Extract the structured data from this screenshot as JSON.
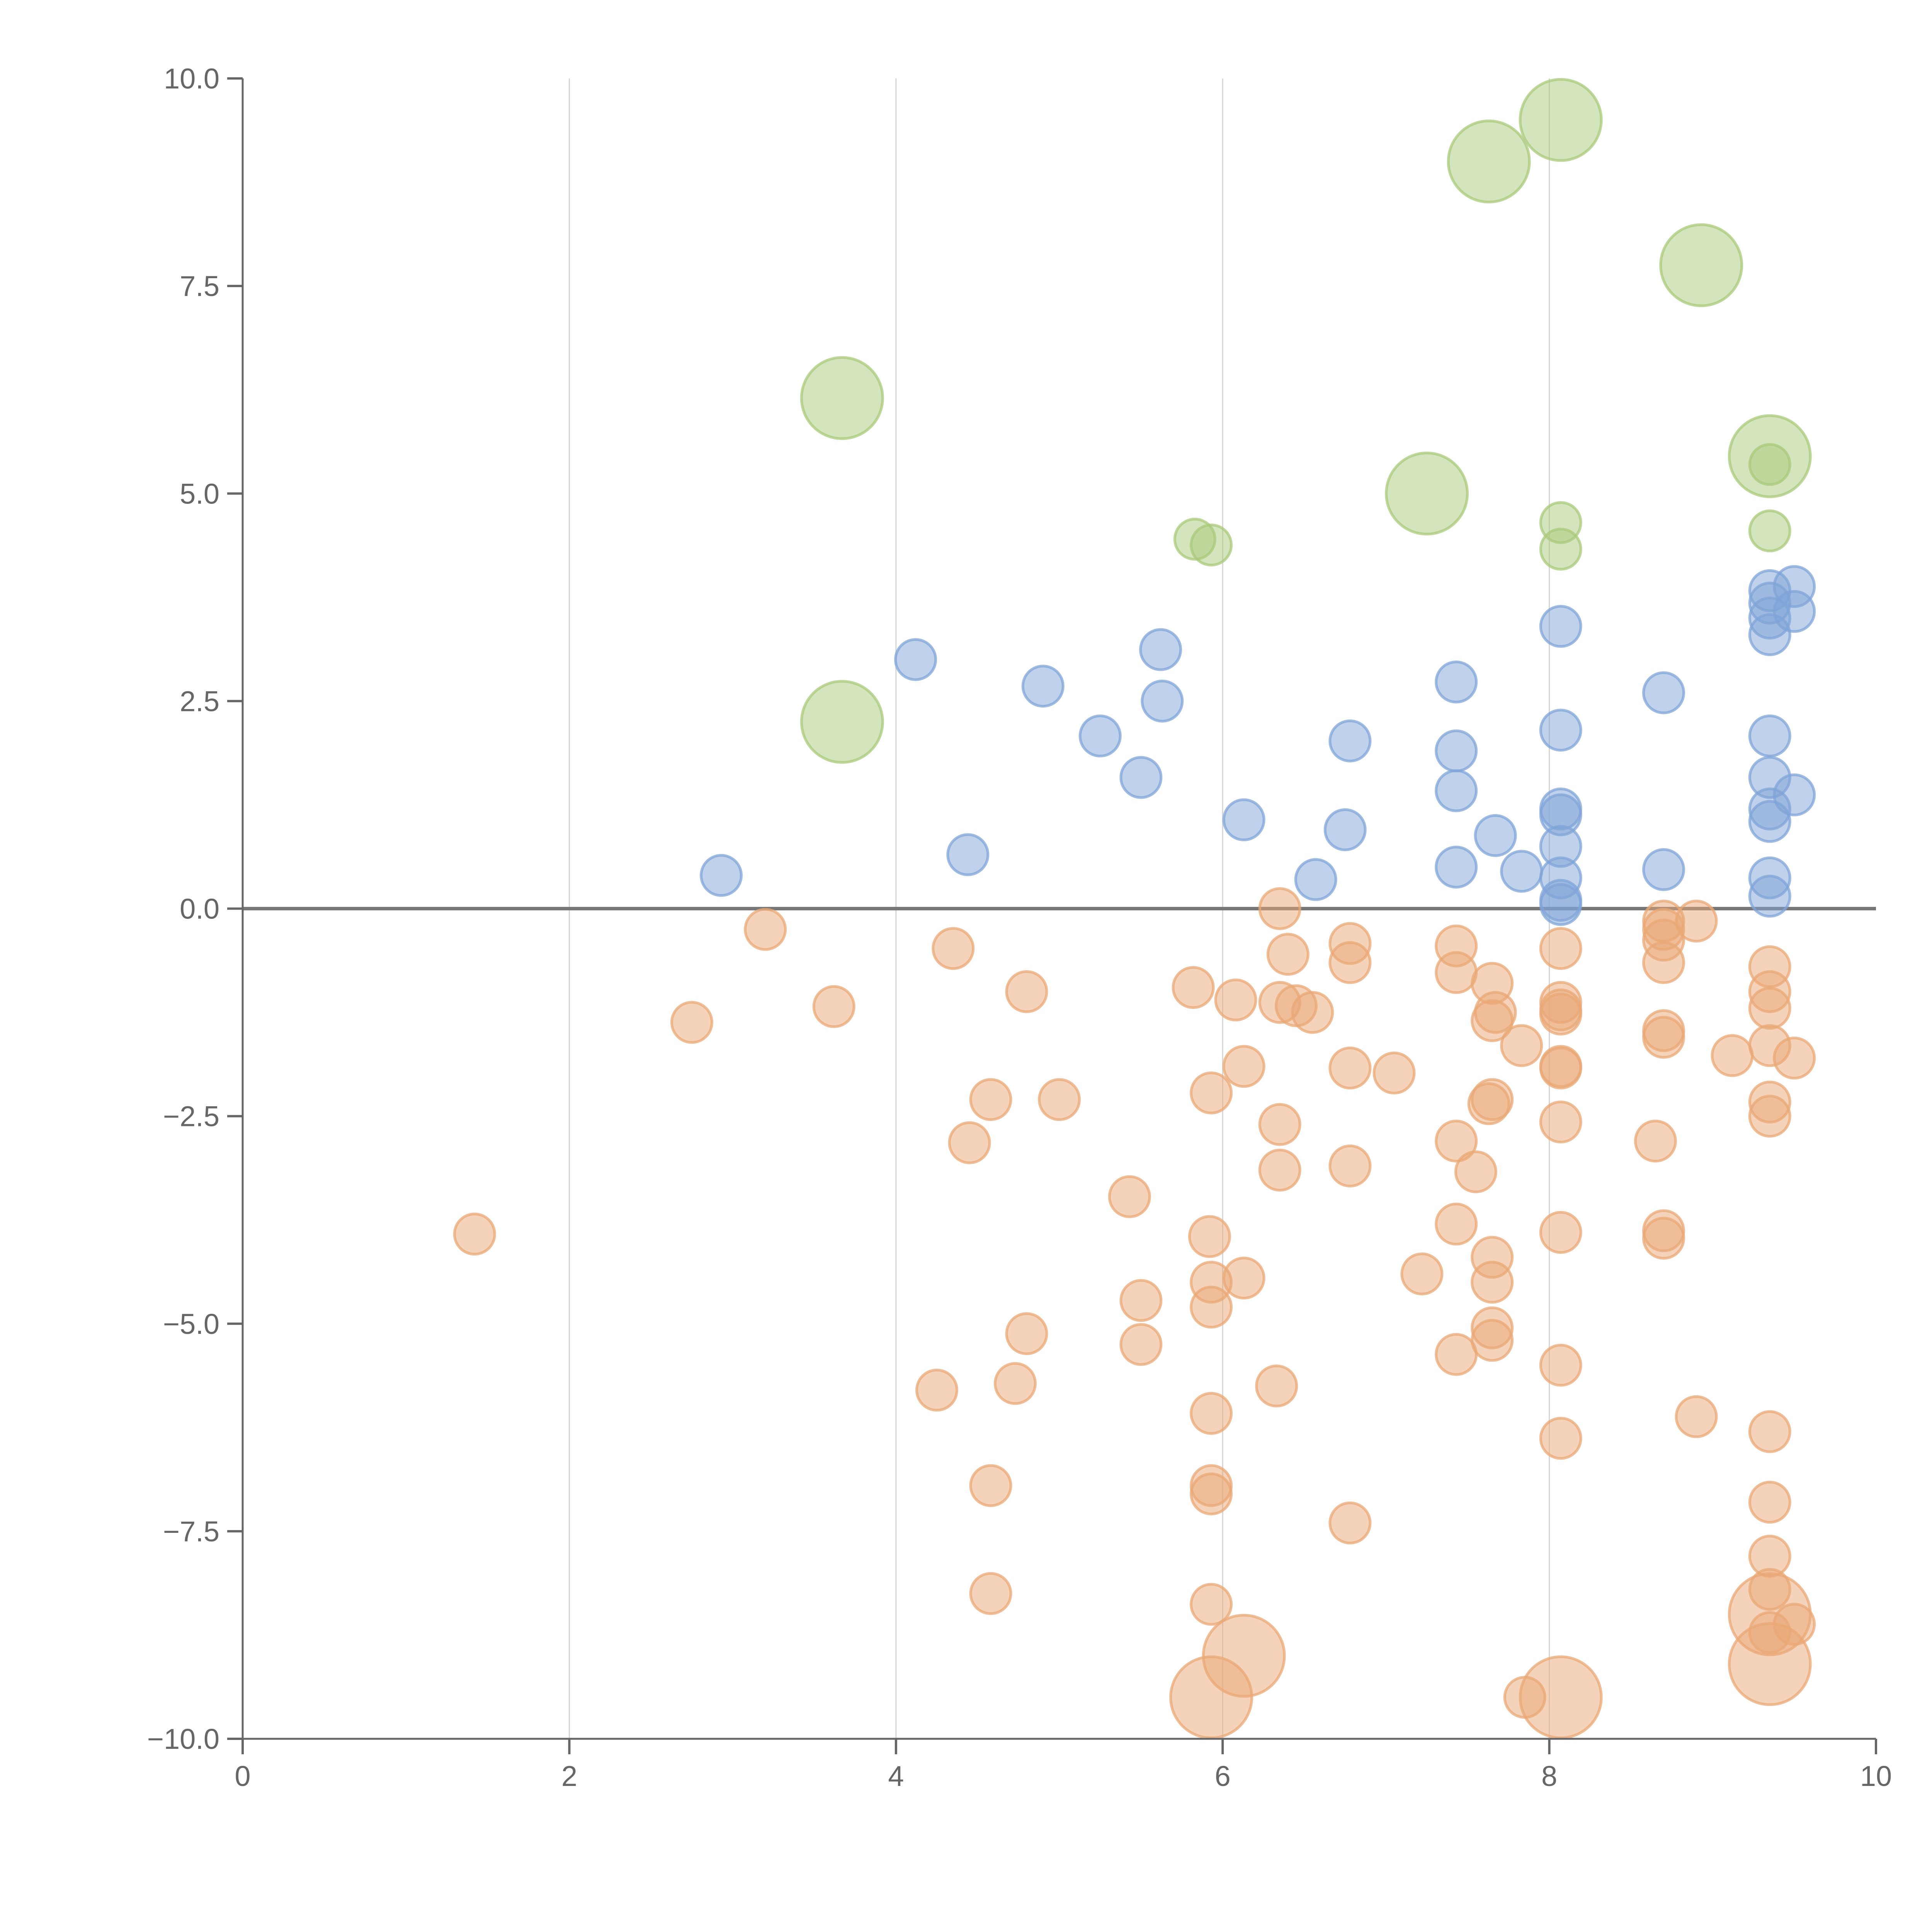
{
  "chart_data": {
    "type": "scatter",
    "title": "",
    "xlabel": "",
    "ylabel": "",
    "xlim": [
      0,
      10
    ],
    "ylim": [
      -10,
      10
    ],
    "x_ticks": [
      0,
      2,
      4,
      6,
      8,
      10
    ],
    "y_ticks": [
      10,
      7.5,
      5,
      2.5,
      0,
      -2.5,
      -5,
      -7.5,
      -10
    ],
    "x_tick_labels": [
      "0",
      "2",
      "4",
      "6",
      "8",
      "10"
    ],
    "y_tick_labels": [
      "10.0",
      "7.5",
      "5.0",
      "2.5",
      "0.0",
      "−2.5",
      "−5.0",
      "−7.5",
      "−10.0"
    ],
    "grid": "vertical",
    "legend": "none",
    "series": [
      {
        "name": "green",
        "color": "#a9c97a",
        "points": [
          [
            8.07,
            9.5,
            3
          ],
          [
            7.63,
            9.0,
            3
          ],
          [
            8.93,
            7.75,
            3
          ],
          [
            3.67,
            6.15,
            3
          ],
          [
            9.35,
            5.45,
            3
          ],
          [
            7.25,
            5.0,
            3
          ],
          [
            3.67,
            2.25,
            3
          ],
          [
            9.35,
            5.35,
            1
          ],
          [
            8.07,
            4.65,
            1
          ],
          [
            9.35,
            4.55,
            1
          ],
          [
            5.83,
            4.45,
            1
          ],
          [
            5.93,
            4.38,
            1
          ],
          [
            8.07,
            4.33,
            1
          ]
        ]
      },
      {
        "name": "blue",
        "color": "#7fa4d8",
        "points": [
          [
            9.5,
            3.88,
            1
          ],
          [
            9.35,
            3.83,
            1
          ],
          [
            9.35,
            3.68,
            1
          ],
          [
            9.5,
            3.58,
            1
          ],
          [
            9.35,
            3.5,
            1
          ],
          [
            8.07,
            3.4,
            1
          ],
          [
            9.35,
            3.3,
            1
          ],
          [
            5.62,
            3.12,
            1
          ],
          [
            4.12,
            3.0,
            1
          ],
          [
            7.43,
            2.73,
            1
          ],
          [
            4.9,
            2.68,
            1
          ],
          [
            8.7,
            2.6,
            1
          ],
          [
            5.63,
            2.5,
            1
          ],
          [
            8.07,
            2.15,
            1
          ],
          [
            5.25,
            2.08,
            1
          ],
          [
            9.35,
            2.08,
            1
          ],
          [
            6.78,
            2.02,
            1
          ],
          [
            7.43,
            1.9,
            1
          ],
          [
            5.5,
            1.58,
            1
          ],
          [
            9.35,
            1.58,
            1
          ],
          [
            7.43,
            1.42,
            1
          ],
          [
            9.5,
            1.37,
            1
          ],
          [
            8.07,
            1.2,
            1
          ],
          [
            9.35,
            1.2,
            1
          ],
          [
            8.07,
            1.13,
            1
          ],
          [
            6.13,
            1.07,
            1
          ],
          [
            9.35,
            1.05,
            1
          ],
          [
            6.75,
            0.95,
            1
          ],
          [
            7.67,
            0.88,
            1
          ],
          [
            8.07,
            0.75,
            1
          ],
          [
            4.44,
            0.65,
            1
          ],
          [
            7.43,
            0.5,
            1
          ],
          [
            8.7,
            0.47,
            1
          ],
          [
            7.83,
            0.45,
            1
          ],
          [
            2.93,
            0.4,
            1
          ],
          [
            8.07,
            0.37,
            1
          ],
          [
            9.35,
            0.37,
            1
          ],
          [
            6.57,
            0.35,
            1
          ],
          [
            9.35,
            0.15,
            1
          ],
          [
            8.07,
            0.1,
            1
          ],
          [
            8.07,
            0.05,
            1
          ]
        ]
      },
      {
        "name": "orange",
        "color": "#e9a875",
        "points": [
          [
            6.35,
            0.0,
            1
          ],
          [
            8.7,
            -0.15,
            1
          ],
          [
            8.9,
            -0.15,
            1
          ],
          [
            3.2,
            -0.25,
            1
          ],
          [
            8.7,
            -0.25,
            1
          ],
          [
            8.7,
            -0.38,
            1
          ],
          [
            6.78,
            -0.42,
            1
          ],
          [
            7.43,
            -0.45,
            1
          ],
          [
            4.35,
            -0.48,
            1
          ],
          [
            8.07,
            -0.48,
            1
          ],
          [
            6.4,
            -0.55,
            1
          ],
          [
            8.7,
            -0.65,
            1
          ],
          [
            6.78,
            -0.65,
            1
          ],
          [
            9.35,
            -0.7,
            1
          ],
          [
            7.43,
            -0.77,
            1
          ],
          [
            7.65,
            -0.9,
            1
          ],
          [
            5.82,
            -0.95,
            1
          ],
          [
            4.8,
            -1.0,
            1
          ],
          [
            9.35,
            -1.0,
            1
          ],
          [
            6.08,
            -1.1,
            1
          ],
          [
            6.35,
            -1.13,
            1
          ],
          [
            8.07,
            -1.13,
            1
          ],
          [
            3.62,
            -1.18,
            1
          ],
          [
            6.45,
            -1.17,
            1
          ],
          [
            9.35,
            -1.2,
            1
          ],
          [
            8.07,
            -1.22,
            1
          ],
          [
            6.55,
            -1.25,
            1
          ],
          [
            7.67,
            -1.25,
            1
          ],
          [
            8.07,
            -1.27,
            1
          ],
          [
            7.65,
            -1.35,
            1
          ],
          [
            2.75,
            -1.37,
            1
          ],
          [
            8.7,
            -1.47,
            1
          ],
          [
            8.7,
            -1.55,
            1
          ],
          [
            7.83,
            -1.65,
            1
          ],
          [
            9.35,
            -1.65,
            1
          ],
          [
            9.12,
            -1.77,
            1
          ],
          [
            9.5,
            -1.8,
            1
          ],
          [
            6.13,
            -1.9,
            1
          ],
          [
            8.07,
            -1.9,
            1
          ],
          [
            6.78,
            -1.92,
            1
          ],
          [
            8.07,
            -1.92,
            1
          ],
          [
            7.05,
            -1.98,
            1
          ],
          [
            5.93,
            -2.22,
            1
          ],
          [
            4.58,
            -2.3,
            1
          ],
          [
            5.0,
            -2.3,
            1
          ],
          [
            7.65,
            -2.3,
            1
          ],
          [
            9.35,
            -2.33,
            1
          ],
          [
            7.63,
            -2.35,
            1
          ],
          [
            9.35,
            -2.5,
            1
          ],
          [
            8.07,
            -2.57,
            1
          ],
          [
            6.35,
            -2.6,
            1
          ],
          [
            8.65,
            -2.8,
            1
          ],
          [
            4.45,
            -2.82,
            1
          ],
          [
            7.43,
            -2.8,
            1
          ],
          [
            6.78,
            -3.1,
            1
          ],
          [
            6.35,
            -3.15,
            1
          ],
          [
            7.55,
            -3.17,
            1
          ],
          [
            5.43,
            -3.47,
            1
          ],
          [
            7.43,
            -3.8,
            1
          ],
          [
            8.7,
            -3.88,
            1
          ],
          [
            1.42,
            -3.92,
            1
          ],
          [
            8.07,
            -3.9,
            1
          ],
          [
            5.92,
            -3.95,
            1
          ],
          [
            8.7,
            -3.97,
            1
          ],
          [
            7.65,
            -4.2,
            1
          ],
          [
            7.22,
            -4.4,
            1
          ],
          [
            6.13,
            -4.45,
            1
          ],
          [
            5.93,
            -4.5,
            1
          ],
          [
            7.65,
            -4.5,
            1
          ],
          [
            5.5,
            -4.72,
            1
          ],
          [
            5.93,
            -4.8,
            1
          ],
          [
            7.65,
            -5.05,
            1
          ],
          [
            4.8,
            -5.12,
            1
          ],
          [
            7.65,
            -5.2,
            1
          ],
          [
            5.5,
            -5.25,
            1
          ],
          [
            7.43,
            -5.37,
            1
          ],
          [
            8.07,
            -5.5,
            1
          ],
          [
            4.73,
            -5.72,
            1
          ],
          [
            6.33,
            -5.75,
            1
          ],
          [
            4.25,
            -5.8,
            1
          ],
          [
            5.93,
            -6.08,
            1
          ],
          [
            8.9,
            -6.12,
            1
          ],
          [
            9.35,
            -6.3,
            1
          ],
          [
            8.07,
            -6.38,
            1
          ],
          [
            4.58,
            -6.95,
            1
          ],
          [
            5.93,
            -6.95,
            1
          ],
          [
            5.93,
            -7.05,
            1
          ],
          [
            9.35,
            -7.15,
            1
          ],
          [
            6.78,
            -7.4,
            1
          ],
          [
            9.35,
            -7.8,
            1
          ],
          [
            9.35,
            -8.2,
            1
          ],
          [
            4.58,
            -8.25,
            1
          ],
          [
            5.93,
            -8.38,
            1
          ],
          [
            9.5,
            -8.62,
            1
          ],
          [
            9.35,
            -8.72,
            1
          ],
          [
            7.85,
            -9.5,
            1
          ],
          [
            9.35,
            -8.5,
            3
          ],
          [
            6.13,
            -9.0,
            3
          ],
          [
            9.35,
            -9.1,
            3
          ],
          [
            5.93,
            -9.5,
            3
          ],
          [
            8.07,
            -9.5,
            3
          ]
        ]
      }
    ]
  }
}
